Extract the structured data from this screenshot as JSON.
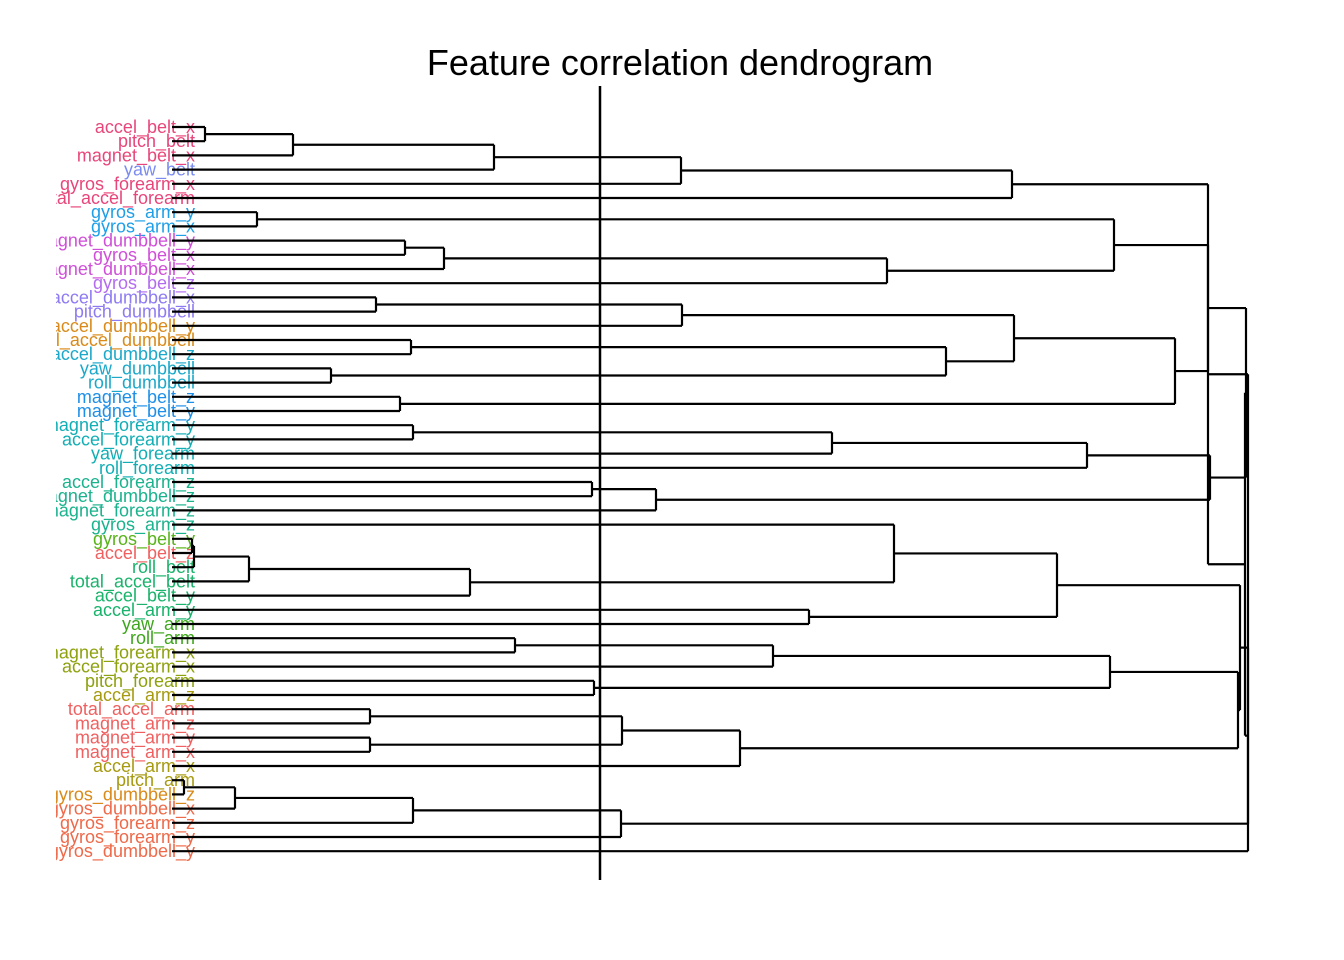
{
  "title": "Feature correlation dendrogram",
  "line_color": "#000000",
  "leaves": [
    {
      "label": "accel_belt_x",
      "color": "#E8467A"
    },
    {
      "label": "pitch_belt",
      "color": "#E8467A"
    },
    {
      "label": "magnet_belt_x",
      "color": "#E8467A"
    },
    {
      "label": "yaw_belt",
      "color": "#7B8CF0"
    },
    {
      "label": "gyros_forearm_x",
      "color": "#E8467A"
    },
    {
      "label": "total_accel_forearm",
      "color": "#E8467A"
    },
    {
      "label": "gyros_arm_y",
      "color": "#1E9FE8"
    },
    {
      "label": "gyros_arm_x",
      "color": "#1E9FE8"
    },
    {
      "label": "magnet_dumbbell_y",
      "color": "#D04FD8"
    },
    {
      "label": "gyros_belt_x",
      "color": "#D04FD8"
    },
    {
      "label": "magnet_dumbbell_x",
      "color": "#D04FD8"
    },
    {
      "label": "gyros_belt_z",
      "color": "#B36CF0"
    },
    {
      "label": "accel_dumbbell_x",
      "color": "#8E7BF2"
    },
    {
      "label": "pitch_dumbbell",
      "color": "#8E7BF2"
    },
    {
      "label": "accel_dumbbell_y",
      "color": "#D98A1A"
    },
    {
      "label": "total_accel_dumbbell",
      "color": "#D98A1A"
    },
    {
      "label": "accel_dumbbell_z",
      "color": "#1BA8C9"
    },
    {
      "label": "yaw_dumbbell",
      "color": "#1BA8C9"
    },
    {
      "label": "roll_dumbbell",
      "color": "#1BA8C9"
    },
    {
      "label": "magnet_belt_z",
      "color": "#1E8FE8"
    },
    {
      "label": "magnet_belt_y",
      "color": "#1E8FE8"
    },
    {
      "label": "magnet_forearm_y",
      "color": "#12AEB5"
    },
    {
      "label": "accel_forearm_y",
      "color": "#12AEB5"
    },
    {
      "label": "yaw_forearm",
      "color": "#12AEB5"
    },
    {
      "label": "roll_forearm",
      "color": "#12AEB5"
    },
    {
      "label": "accel_forearm_z",
      "color": "#1BB28E"
    },
    {
      "label": "magnet_dumbbell_z",
      "color": "#1BB28E"
    },
    {
      "label": "magnet_forearm_z",
      "color": "#1BB28E"
    },
    {
      "label": "gyros_arm_z",
      "color": "#1BB28E"
    },
    {
      "label": "gyros_belt_y",
      "color": "#58B31A"
    },
    {
      "label": "accel_belt_z",
      "color": "#F06060"
    },
    {
      "label": "roll_belt",
      "color": "#19B36B"
    },
    {
      "label": "total_accel_belt",
      "color": "#19B36B"
    },
    {
      "label": "accel_belt_y",
      "color": "#19B36B"
    },
    {
      "label": "accel_arm_y",
      "color": "#19B36B"
    },
    {
      "label": "yaw_arm",
      "color": "#3DA61C"
    },
    {
      "label": "roll_arm",
      "color": "#3DA61C"
    },
    {
      "label": "magnet_forearm_x",
      "color": "#8FA10F"
    },
    {
      "label": "accel_forearm_x",
      "color": "#8FA10F"
    },
    {
      "label": "pitch_forearm",
      "color": "#8FA10F"
    },
    {
      "label": "accel_arm_z",
      "color": "#A69A10"
    },
    {
      "label": "total_accel_arm",
      "color": "#F06060"
    },
    {
      "label": "magnet_arm_z",
      "color": "#F06060"
    },
    {
      "label": "magnet_arm_y",
      "color": "#F06060"
    },
    {
      "label": "magnet_arm_x",
      "color": "#F06060"
    },
    {
      "label": "accel_arm_x",
      "color": "#A69A10"
    },
    {
      "label": "pitch_arm",
      "color": "#A69A10"
    },
    {
      "label": "gyros_dumbbell_z",
      "color": "#D98A1A"
    },
    {
      "label": "gyros_dumbbell_x",
      "color": "#EE6A4A"
    },
    {
      "label": "gyros_forearm_z",
      "color": "#EE6A4A"
    },
    {
      "label": "gyros_forearm_y",
      "color": "#EE6A4A"
    },
    {
      "label": "gyros_dumbbell_y",
      "color": "#EE6A4A"
    }
  ]
}
